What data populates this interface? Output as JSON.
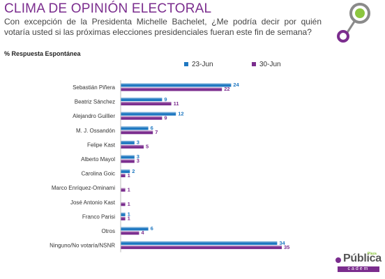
{
  "header": {
    "title": "CLIMA DE OPINIÓN ELECTORAL",
    "question": "Con excepción de la Presidenta Michelle Bachelet, ¿Me podría decir por quién votaría usted si las próximas elecciones presidenciales fueran este fin de semana?",
    "subtitle": "% Respuesta Espontánea"
  },
  "footer": {
    "brand": "Pública",
    "sub": "cadem",
    "tag": "Plaza"
  },
  "colors": {
    "series1": "#1f78c1",
    "series2": "#7b2d8e",
    "title": "#7b2d8e",
    "accent_green": "#8cc63f",
    "accent_gray": "#8a8a8a"
  },
  "chart_data": {
    "type": "bar",
    "orientation": "horizontal",
    "categories": [
      "Sebastián Piñera",
      "Beatriz Sánchez",
      "Alejandro  Guillier",
      "M. J. Ossandón",
      "Felipe Kast",
      "Alberto Mayol",
      "Carolina Goic",
      "Marco Enríquez-Ominami",
      "José Antonio Kast",
      "Franco Parisi",
      "Otros",
      "Ninguno/No votaría/NSNR"
    ],
    "series": [
      {
        "name": "23-Jun",
        "values": [
          24,
          9,
          12,
          6,
          3,
          3,
          2,
          null,
          null,
          1,
          6,
          34
        ]
      },
      {
        "name": "30-Jun",
        "values": [
          22,
          11,
          9,
          7,
          5,
          3,
          1,
          1,
          1,
          1,
          4,
          35
        ]
      }
    ],
    "data_labels": true,
    "grid": false,
    "legend_position": "top"
  }
}
